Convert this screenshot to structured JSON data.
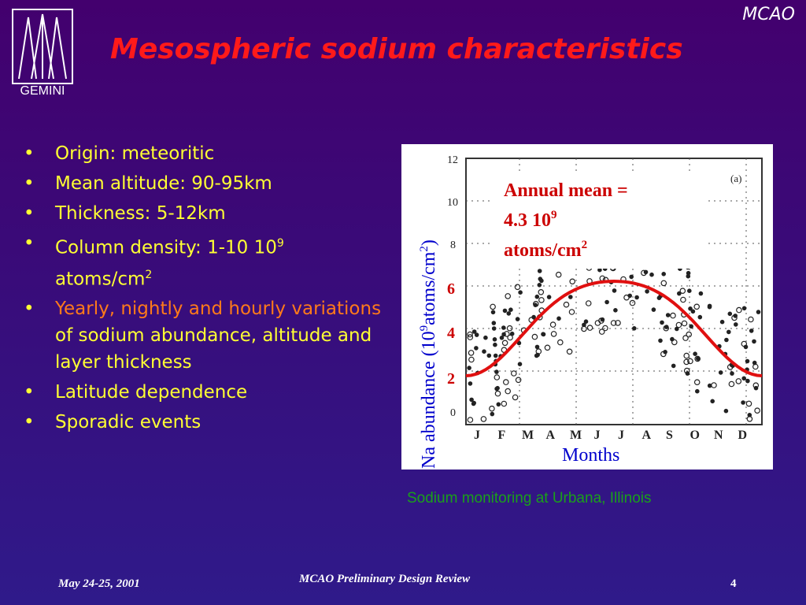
{
  "header": {
    "corner_label": "MCAO",
    "title": "Mesospheric sodium characteristics",
    "logo_text": "GEMINI"
  },
  "bullets": {
    "b1": "Origin: meteoritic",
    "b2": "Mean altitude: 90-95km",
    "b3": "Thickness: 5-12km",
    "b4_main": "Column density: 1-10 10",
    "b4_sup": "9",
    "b4_unit": "atoms/cm",
    "b4_unit_sup": "2",
    "b5_highlight": "Yearly, nightly and hourly variations",
    "b5_rest": " of sodium abundance, altitude and layer thickness",
    "b6": "Latitude dependence",
    "b7": "Sporadic events",
    "bullet_char": "•"
  },
  "figure": {
    "annotation_line1": "Annual mean =",
    "annotation_line2_pre": "4.3 10",
    "annotation_line2_sup": "9",
    "annotation_line3": "atoms/cm",
    "annotation_line3_sup": "2",
    "panel_label": "(a)",
    "y_axis_label_pre": "Na abundance  (10",
    "y_axis_label_sup1": "9",
    "y_axis_label_mid": "atoms/cm",
    "y_axis_label_sup2": "2",
    "y_axis_label_post": ")",
    "x_axis_label": "Months",
    "y_ticks_original": [
      "12",
      "10",
      "8",
      "6",
      "4",
      "2",
      "0"
    ],
    "y_ticks_overlay": [
      "6",
      "4",
      "2"
    ],
    "month_letters": [
      "J",
      "F",
      "M",
      "A",
      "M",
      "J",
      "J",
      "A",
      "S",
      "O",
      "N",
      "D"
    ],
    "caption": "Sodium monitoring at Urbana, Illinois"
  },
  "footer": {
    "date": "May 24-25, 2001",
    "center": "MCAO Preliminary Design Review",
    "page": "4"
  },
  "colors": {
    "background": "#3a0a78",
    "title": "#ff1a1a",
    "bullet_text": "#ffff33",
    "highlight": "#ff7a1a",
    "caption": "#1aa01a",
    "curve": "#e01010",
    "annotation": "#cc0000",
    "x_label": "#0000cc"
  }
}
